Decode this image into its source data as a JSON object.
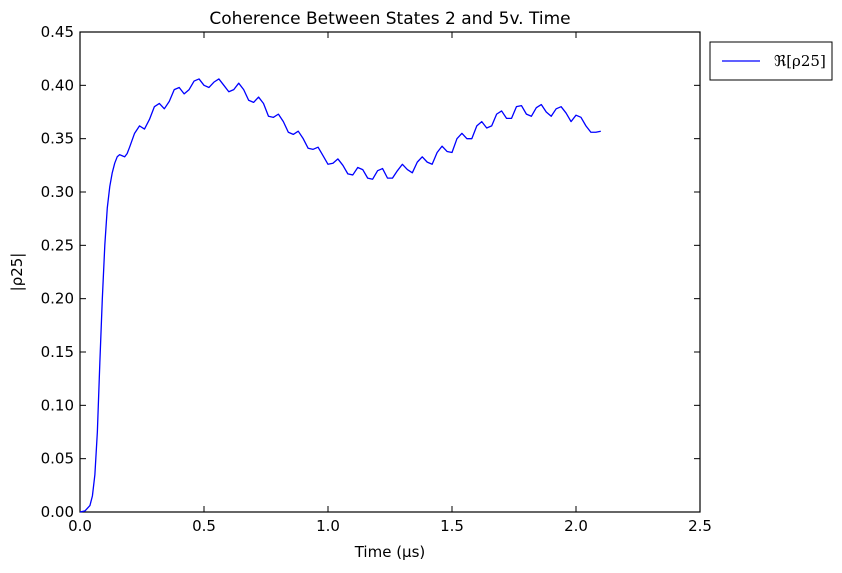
{
  "chart_data": {
    "type": "line",
    "title": "Coherence Between States 2 and 5v. Time",
    "xlabel": "Time (μs)",
    "ylabel": "|ρ25|",
    "xlim": [
      0.0,
      2.5
    ],
    "ylim": [
      0.0,
      0.45
    ],
    "xticks": [
      "0.0",
      "0.5",
      "1.0",
      "1.5",
      "2.0",
      "2.5"
    ],
    "yticks": [
      "0.00",
      "0.05",
      "0.10",
      "0.15",
      "0.20",
      "0.25",
      "0.30",
      "0.35",
      "0.40",
      "0.45"
    ],
    "grid": false,
    "legend_position": "outside-top-right",
    "series": [
      {
        "name": "ℜ[ρ25]",
        "color": "#0000ff",
        "x": [
          0.0,
          0.02,
          0.04,
          0.05,
          0.06,
          0.07,
          0.08,
          0.09,
          0.1,
          0.11,
          0.12,
          0.13,
          0.14,
          0.15,
          0.16,
          0.17,
          0.18,
          0.19,
          0.2,
          0.22,
          0.24,
          0.26,
          0.28,
          0.3,
          0.32,
          0.34,
          0.36,
          0.38,
          0.4,
          0.42,
          0.44,
          0.46,
          0.48,
          0.5,
          0.52,
          0.54,
          0.56,
          0.58,
          0.6,
          0.62,
          0.64,
          0.66,
          0.68,
          0.7,
          0.72,
          0.74,
          0.76,
          0.78,
          0.8,
          0.82,
          0.84,
          0.86,
          0.88,
          0.9,
          0.92,
          0.94,
          0.96,
          0.98,
          1.0,
          1.02,
          1.04,
          1.06,
          1.08,
          1.1,
          1.12,
          1.14,
          1.16,
          1.18,
          1.2,
          1.22,
          1.24,
          1.26,
          1.28,
          1.3,
          1.32,
          1.34,
          1.36,
          1.38,
          1.4,
          1.42,
          1.44,
          1.46,
          1.48,
          1.5,
          1.52,
          1.54,
          1.56,
          1.58,
          1.6,
          1.62,
          1.64,
          1.66,
          1.68,
          1.7,
          1.72,
          1.74,
          1.76,
          1.78,
          1.8,
          1.82,
          1.84,
          1.86,
          1.88,
          1.9,
          1.92,
          1.94,
          1.96,
          1.98,
          2.0,
          2.02,
          2.04,
          2.06,
          2.08,
          2.1
        ],
        "y": [
          0.0,
          0.001,
          0.006,
          0.015,
          0.035,
          0.075,
          0.14,
          0.2,
          0.25,
          0.285,
          0.305,
          0.318,
          0.327,
          0.333,
          0.335,
          0.334,
          0.333,
          0.336,
          0.342,
          0.355,
          0.362,
          0.359,
          0.368,
          0.38,
          0.383,
          0.378,
          0.385,
          0.396,
          0.398,
          0.392,
          0.396,
          0.404,
          0.406,
          0.4,
          0.398,
          0.403,
          0.406,
          0.4,
          0.394,
          0.396,
          0.402,
          0.396,
          0.386,
          0.384,
          0.389,
          0.383,
          0.371,
          0.37,
          0.373,
          0.366,
          0.356,
          0.354,
          0.357,
          0.35,
          0.341,
          0.34,
          0.342,
          0.334,
          0.326,
          0.327,
          0.331,
          0.325,
          0.317,
          0.316,
          0.323,
          0.321,
          0.313,
          0.312,
          0.32,
          0.322,
          0.313,
          0.313,
          0.32,
          0.326,
          0.321,
          0.318,
          0.328,
          0.333,
          0.328,
          0.326,
          0.337,
          0.343,
          0.338,
          0.337,
          0.35,
          0.355,
          0.35,
          0.35,
          0.362,
          0.366,
          0.36,
          0.362,
          0.373,
          0.376,
          0.369,
          0.369,
          0.38,
          0.381,
          0.373,
          0.371,
          0.379,
          0.382,
          0.375,
          0.371,
          0.378,
          0.38,
          0.374,
          0.366,
          0.372,
          0.37,
          0.362,
          0.356,
          0.356,
          0.357
        ]
      }
    ]
  }
}
